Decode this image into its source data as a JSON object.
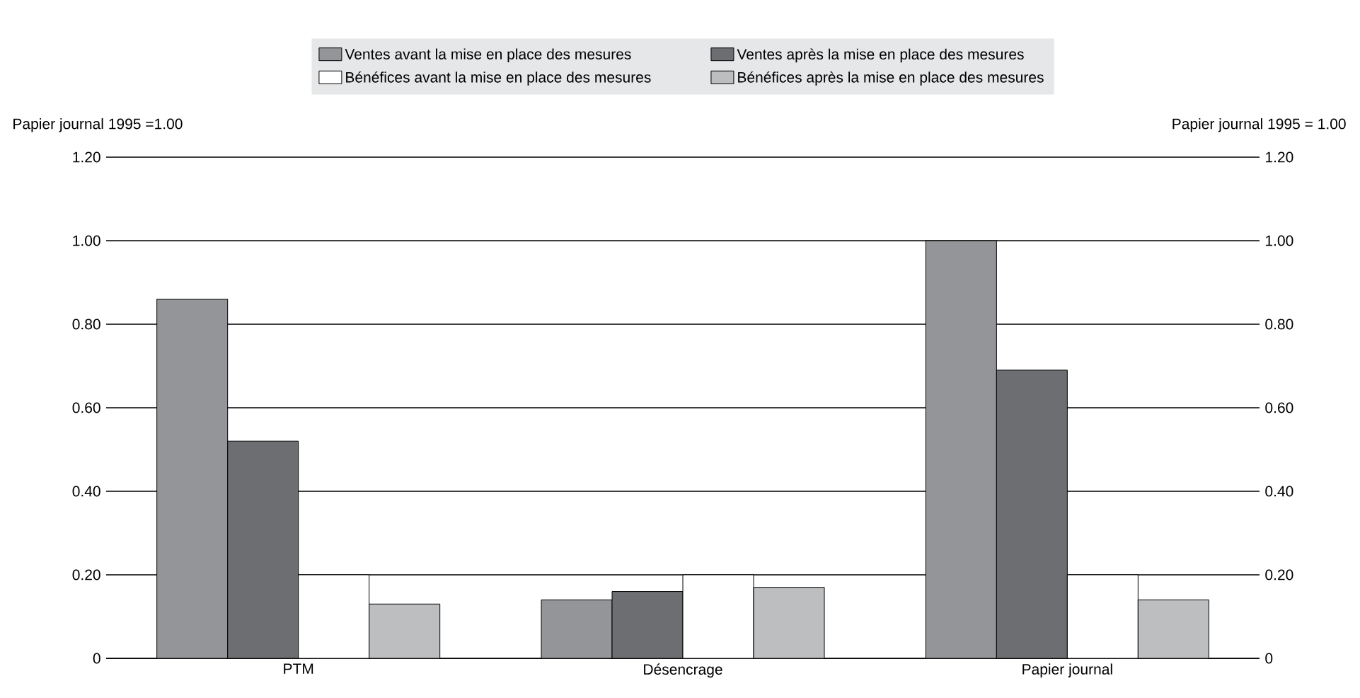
{
  "chart_data": {
    "type": "bar",
    "ylabel": "Papier journal 1995 =1.00",
    "y2label": "Papier journal 1995 = 1.00",
    "categories": [
      "PTM",
      "Désencrage",
      "Papier journal"
    ],
    "series": [
      {
        "name": "Ventes avant la mise en place des mesures",
        "color": "#939598",
        "values": [
          0.86,
          0.14,
          1.0
        ]
      },
      {
        "name": "Ventes après la mise en place des mesures",
        "color": "#6d6e71",
        "values": [
          0.52,
          0.16,
          0.69
        ]
      },
      {
        "name": "Bénéfices avant la mise en place des mesures",
        "color": "#ffffff",
        "values": [
          0.2,
          0.2,
          0.2
        ]
      },
      {
        "name": "Bénéfices après la mise en place des mesures",
        "color": "#bcbec0",
        "values": [
          0.13,
          0.17,
          0.14
        ]
      }
    ],
    "ylim": [
      0,
      1.2
    ],
    "yticks": [
      0,
      {
        "value": 0.2,
        "label": "0.20"
      },
      {
        "value": 0.4,
        "label": "0.40"
      },
      {
        "value": 0.6,
        "label": "0.60"
      },
      {
        "value": 0.8,
        "label": "0.80"
      },
      {
        "value": 1.0,
        "label": "1.00"
      },
      {
        "value": 1.2,
        "label": "1.20"
      }
    ],
    "y2lim": [
      0,
      1.2
    ],
    "y2ticks": [
      0,
      {
        "value": 0.2,
        "label": "0.20"
      },
      {
        "value": 0.4,
        "label": "0.40"
      },
      {
        "value": 0.6,
        "label": "0.60"
      },
      {
        "value": 0.8,
        "label": "0.80"
      },
      {
        "value": 1.0,
        "label": "1.00"
      },
      {
        "value": 1.2,
        "label": "1.20"
      }
    ],
    "grid": "y",
    "legend": "top"
  }
}
